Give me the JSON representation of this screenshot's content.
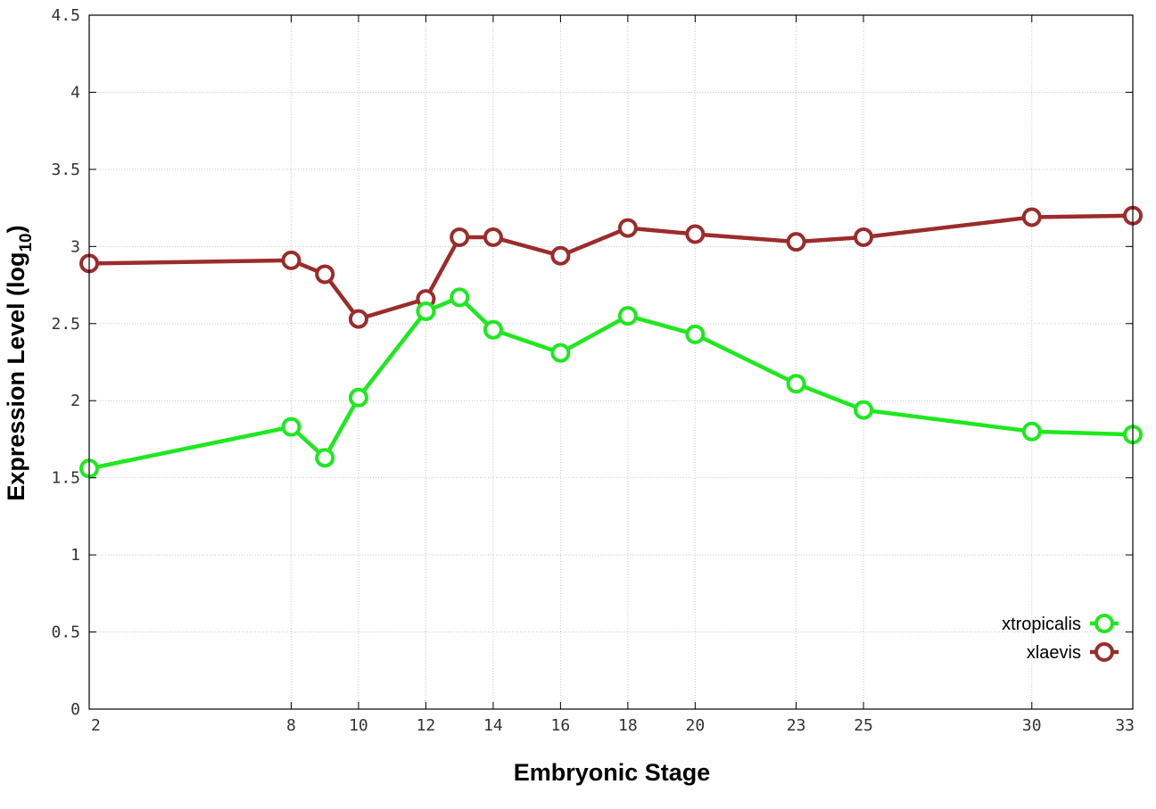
{
  "chart_data": {
    "type": "line",
    "xlabel": "Embryonic Stage",
    "ylabel_main": "Expression Level (log",
    "ylabel_sub": "10",
    "ylabel_close": ")",
    "x": [
      2,
      8,
      9,
      10,
      12,
      13,
      14,
      16,
      18,
      20,
      23,
      25,
      30,
      33
    ],
    "x_ticks": [
      2,
      8,
      10,
      12,
      14,
      16,
      18,
      20,
      23,
      25,
      30,
      33
    ],
    "x_tick_labels": [
      "2",
      "8",
      "10",
      "12",
      "14",
      "16",
      "18",
      "20",
      "23",
      "25",
      "30",
      "33"
    ],
    "xlim": [
      2,
      33
    ],
    "y_ticks": [
      0,
      0.5,
      1,
      1.5,
      2,
      2.5,
      3,
      3.5,
      4,
      4.5
    ],
    "y_tick_labels": [
      "0",
      "0.5",
      "1",
      "1.5",
      "2",
      "2.5",
      "3",
      "3.5",
      "4",
      "4.5"
    ],
    "ylim": [
      0,
      4.5
    ],
    "grid": true,
    "legend_position": "bottom-right",
    "series": [
      {
        "name": "xtropicalis",
        "color": "#1ee81e",
        "values": [
          1.56,
          1.83,
          1.63,
          2.02,
          2.58,
          2.67,
          2.46,
          2.31,
          2.55,
          2.43,
          2.11,
          1.94,
          1.8,
          1.78
        ]
      },
      {
        "name": "xlaevis",
        "color": "#9b2c2c",
        "values": [
          2.89,
          2.91,
          2.82,
          2.53,
          2.66,
          3.06,
          3.06,
          2.94,
          3.12,
          3.08,
          3.03,
          3.06,
          3.19,
          3.2
        ]
      }
    ]
  }
}
